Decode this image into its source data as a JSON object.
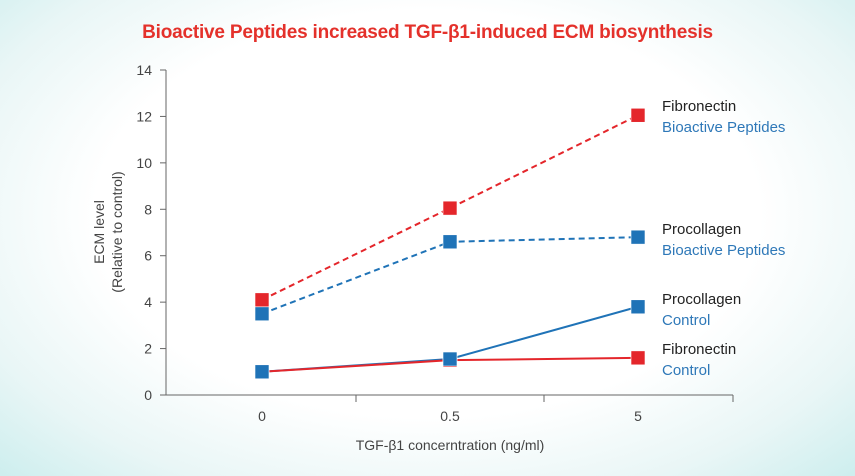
{
  "chart_data": {
    "type": "line",
    "title": "Bioactive Peptides increased TGF-β1-induced ECM biosynthesis",
    "xlabel": "TGF-β1 concerntration (ng/ml)",
    "ylabel": [
      "ECM level",
      "(Relative to control)"
    ],
    "categories": [
      "0",
      "0.5",
      "5"
    ],
    "ylim": [
      0,
      14
    ],
    "yticks": [
      0,
      2,
      4,
      6,
      8,
      10,
      12,
      14
    ],
    "grid": false,
    "series": [
      {
        "id": "fibronectin-bioactive",
        "label": [
          "Fibronectin",
          "Bioactive Peptides"
        ],
        "values": [
          4.1,
          8.05,
          12.05
        ],
        "color": "#e4262b",
        "dashed": true
      },
      {
        "id": "procollagen-bioactive",
        "label": [
          "Procollagen",
          "Bioactive Peptides"
        ],
        "values": [
          3.5,
          6.6,
          6.8
        ],
        "color": "#1f73b7",
        "dashed": true
      },
      {
        "id": "procollagen-control",
        "label": [
          "Procollagen",
          "Control"
        ],
        "values": [
          1.0,
          1.55,
          3.8
        ],
        "color": "#1f73b7",
        "dashed": false
      },
      {
        "id": "fibronectin-control",
        "label": [
          "Fibronectin",
          "Control"
        ],
        "values": [
          1.0,
          1.5,
          1.6
        ],
        "color": "#e4262b",
        "dashed": false
      }
    ]
  }
}
